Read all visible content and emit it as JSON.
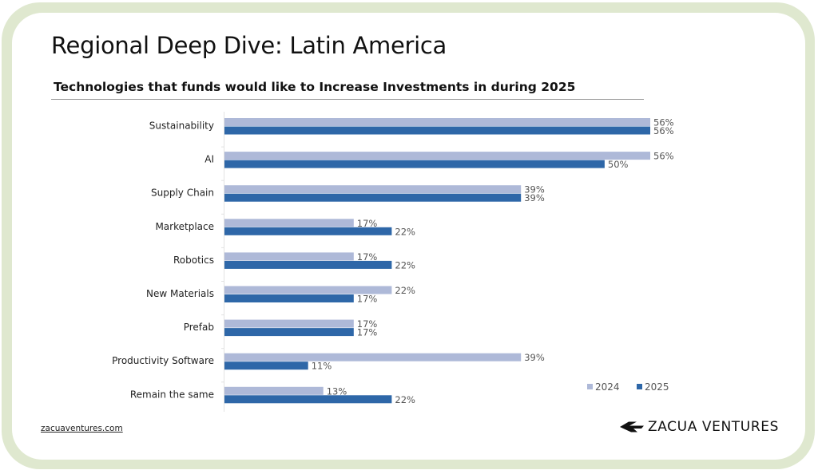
{
  "page": {
    "title": "Regional Deep Dive: Latin America",
    "footer_link": "zacuaventures.com",
    "brand": {
      "name": "ZACUA VENTURES",
      "logo_icon": "bird-arrow-icon"
    },
    "frame_color": "#dfe8cf"
  },
  "chart_data": {
    "type": "bar",
    "orientation": "horizontal",
    "title": "Technologies that funds would like to Increase Investments in during 2025",
    "xlabel": "",
    "ylabel": "",
    "categories": [
      "Sustainability",
      "AI",
      "Supply Chain",
      "Marketplace",
      "Robotics",
      "New Materials",
      "Prefab",
      "Productivity Software",
      "Remain the same"
    ],
    "series": [
      {
        "name": "2024",
        "color": "#aeb9d8",
        "values": [
          56,
          56,
          39,
          17,
          17,
          22,
          17,
          39,
          13
        ],
        "labels": [
          "56%",
          "56%",
          "39%",
          "17%",
          "17%",
          "22%",
          "17%",
          "39%",
          "13%"
        ]
      },
      {
        "name": "2025",
        "color": "#2e67a8",
        "values": [
          56,
          50,
          39,
          22,
          22,
          17,
          17,
          11,
          22
        ],
        "labels": [
          "56%",
          "50%",
          "39%",
          "22%",
          "22%",
          "17%",
          "17%",
          "11%",
          "22%"
        ]
      }
    ],
    "unit": "%",
    "xlim": [
      0,
      56
    ],
    "grid": false,
    "legend": {
      "position": "bottom-right",
      "entries": [
        "2024",
        "2025"
      ]
    }
  }
}
